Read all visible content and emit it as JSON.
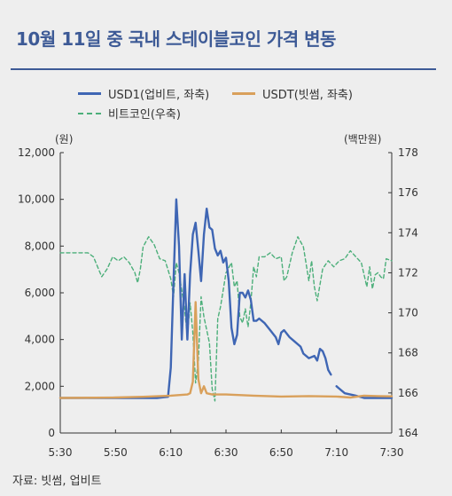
{
  "title": "10월 11일 중 국내 스테이블코인 가격 변동",
  "legend": {
    "usd1": "USD1(업비트, 좌축)",
    "usdt": "USDT(빗썸, 좌축)",
    "btc": "비트코인(우축)"
  },
  "left_unit": "(원)",
  "right_unit": "(백만원)",
  "source": "자료: 빗썸, 업비트",
  "colors": {
    "usd1": "#3f66b4",
    "usdt": "#d9a05b",
    "btc": "#4caf7a",
    "title": "#3d5a96"
  },
  "chart_data": {
    "type": "line",
    "title": "10월 11일 중 국내 스테이블코인 가격 변동",
    "x_ticks": [
      "5:30",
      "5:50",
      "6:10",
      "6:30",
      "6:50",
      "7:10",
      "7:30"
    ],
    "x_range_minutes": [
      "5:30",
      "7:30"
    ],
    "left_axis": {
      "label": "(원)",
      "ylim": [
        0,
        12000
      ],
      "ticks": [
        "0",
        "2,000",
        "4,000",
        "6,000",
        "8,000",
        "10,000",
        "12,000"
      ]
    },
    "right_axis": {
      "label": "(백만원)",
      "ylim": [
        164,
        178
      ],
      "ticks": [
        "164",
        "166",
        "168",
        "170",
        "172",
        "174",
        "176",
        "178"
      ]
    },
    "series": [
      {
        "name": "USD1(업비트, 좌축)",
        "axis": "left",
        "style": "solid",
        "points": [
          [
            "5:30",
            1500
          ],
          [
            "5:50",
            1500
          ],
          [
            "6:05",
            1500
          ],
          [
            "6:09",
            1550
          ],
          [
            "6:10",
            2800
          ],
          [
            "6:11",
            6500
          ],
          [
            "6:12",
            10000
          ],
          [
            "6:13",
            8000
          ],
          [
            "6:14",
            4000
          ],
          [
            "6:15",
            6800
          ],
          [
            "6:16",
            4000
          ],
          [
            "6:17",
            6800
          ],
          [
            "6:18",
            8500
          ],
          [
            "6:19",
            9000
          ],
          [
            "6:20",
            7800
          ],
          [
            "6:21",
            6500
          ],
          [
            "6:22",
            8500
          ],
          [
            "6:23",
            9600
          ],
          [
            "6:24",
            8800
          ],
          [
            "6:25",
            8700
          ],
          [
            "6:26",
            7900
          ],
          [
            "6:27",
            7600
          ],
          [
            "6:28",
            7800
          ],
          [
            "6:29",
            7300
          ],
          [
            "6:30",
            7500
          ],
          [
            "6:31",
            6500
          ],
          [
            "6:32",
            4500
          ],
          [
            "6:33",
            3800
          ],
          [
            "6:34",
            4200
          ],
          [
            "6:35",
            6000
          ],
          [
            "6:36",
            6000
          ],
          [
            "6:37",
            5800
          ],
          [
            "6:38",
            6100
          ],
          [
            "6:39",
            5700
          ],
          [
            "6:40",
            4800
          ],
          [
            "6:41",
            4800
          ],
          [
            "6:42",
            4900
          ],
          [
            "6:44",
            4700
          ],
          [
            "6:46",
            4400
          ],
          [
            "6:48",
            4100
          ],
          [
            "6:49",
            3800
          ],
          [
            "6:50",
            4300
          ],
          [
            "6:51",
            4400
          ],
          [
            "6:53",
            4100
          ],
          [
            "6:55",
            3900
          ],
          [
            "6:57",
            3700
          ],
          [
            "6:58",
            3400
          ],
          [
            "7:00",
            3200
          ],
          [
            "7:02",
            3300
          ],
          [
            "7:03",
            3100
          ],
          [
            "7:04",
            3600
          ],
          [
            "7:05",
            3500
          ],
          [
            "7:06",
            3200
          ],
          [
            "7:07",
            2700
          ],
          [
            "7:08",
            2500
          ]
        ]
      },
      {
        "name": "USD1(업비트, 좌축)",
        "axis": "left",
        "style": "solid",
        "segment": 2,
        "points": [
          [
            "7:10",
            2000
          ],
          [
            "7:11",
            1900
          ],
          [
            "7:13",
            1700
          ],
          [
            "7:15",
            1650
          ],
          [
            "7:17",
            1600
          ],
          [
            "7:20",
            1500
          ],
          [
            "7:25",
            1500
          ],
          [
            "7:30",
            1500
          ]
        ]
      },
      {
        "name": "USDT(빗썸, 좌축)",
        "axis": "left",
        "style": "solid",
        "points": [
          [
            "5:30",
            1500
          ],
          [
            "5:50",
            1520
          ],
          [
            "6:00",
            1550
          ],
          [
            "6:10",
            1600
          ],
          [
            "6:16",
            1650
          ],
          [
            "6:17",
            1700
          ],
          [
            "6:18",
            2200
          ],
          [
            "6:19",
            5600
          ],
          [
            "6:20",
            2300
          ],
          [
            "6:21",
            1700
          ],
          [
            "6:22",
            2000
          ],
          [
            "6:23",
            1700
          ],
          [
            "6:25",
            1650
          ],
          [
            "6:30",
            1650
          ],
          [
            "6:40",
            1600
          ],
          [
            "6:50",
            1560
          ],
          [
            "7:00",
            1580
          ],
          [
            "7:10",
            1560
          ],
          [
            "7:15",
            1520
          ],
          [
            "7:20",
            1600
          ],
          [
            "7:25",
            1580
          ],
          [
            "7:30",
            1570
          ]
        ]
      },
      {
        "name": "비트코인(우축)",
        "axis": "right",
        "style": "dashed",
        "points": [
          [
            "5:30",
            173.0
          ],
          [
            "5:40",
            173.0
          ],
          [
            "5:42",
            172.8
          ],
          [
            "5:45",
            171.8
          ],
          [
            "5:47",
            172.2
          ],
          [
            "5:49",
            172.8
          ],
          [
            "5:51",
            172.6
          ],
          [
            "5:53",
            172.8
          ],
          [
            "5:55",
            172.5
          ],
          [
            "5:57",
            172.0
          ],
          [
            "5:58",
            171.5
          ],
          [
            "5:59",
            172.2
          ],
          [
            "6:00",
            173.3
          ],
          [
            "6:02",
            173.8
          ],
          [
            "6:04",
            173.4
          ],
          [
            "6:06",
            172.7
          ],
          [
            "6:08",
            172.6
          ],
          [
            "6:10",
            171.7
          ],
          [
            "6:11",
            170.8
          ],
          [
            "6:12",
            172.5
          ],
          [
            "6:13",
            172.0
          ],
          [
            "6:15",
            170.2
          ],
          [
            "6:16",
            168.8
          ],
          [
            "6:17",
            170.5
          ],
          [
            "6:18",
            169.0
          ],
          [
            "6:19",
            166.5
          ],
          [
            "6:20",
            167.6
          ],
          [
            "6:21",
            170.8
          ],
          [
            "6:22",
            169.8
          ],
          [
            "6:24",
            168.5
          ],
          [
            "6:25",
            166.2
          ],
          [
            "6:26",
            165.6
          ],
          [
            "6:27",
            169.7
          ],
          [
            "6:28",
            170.3
          ],
          [
            "6:30",
            172.0
          ],
          [
            "6:32",
            172.5
          ],
          [
            "6:33",
            171.3
          ],
          [
            "6:34",
            171.6
          ],
          [
            "6:35",
            169.8
          ],
          [
            "6:36",
            169.5
          ],
          [
            "6:37",
            170.2
          ],
          [
            "6:38",
            169.3
          ],
          [
            "6:39",
            170.5
          ],
          [
            "6:40",
            172.3
          ],
          [
            "6:41",
            171.8
          ],
          [
            "6:42",
            172.8
          ],
          [
            "6:44",
            172.8
          ],
          [
            "6:46",
            173.0
          ],
          [
            "6:48",
            172.7
          ],
          [
            "6:50",
            172.8
          ],
          [
            "6:51",
            171.6
          ],
          [
            "6:52",
            171.8
          ],
          [
            "6:54",
            173.0
          ],
          [
            "6:56",
            173.8
          ],
          [
            "6:58",
            173.3
          ],
          [
            "7:00",
            171.6
          ],
          [
            "7:01",
            172.6
          ],
          [
            "7:02",
            171.3
          ],
          [
            "7:03",
            170.6
          ],
          [
            "7:05",
            172.2
          ],
          [
            "7:07",
            172.6
          ],
          [
            "7:09",
            172.3
          ],
          [
            "7:11",
            172.6
          ],
          [
            "7:13",
            172.7
          ],
          [
            "7:15",
            173.1
          ],
          [
            "7:17",
            172.8
          ],
          [
            "7:19",
            172.5
          ],
          [
            "7:21",
            171.3
          ],
          [
            "7:22",
            172.3
          ],
          [
            "7:23",
            171.2
          ],
          [
            "7:24",
            171.9
          ],
          [
            "7:25",
            172.0
          ],
          [
            "7:26",
            171.8
          ],
          [
            "7:27",
            171.7
          ],
          [
            "7:28",
            172.7
          ],
          [
            "7:30",
            172.6
          ]
        ]
      }
    ]
  }
}
